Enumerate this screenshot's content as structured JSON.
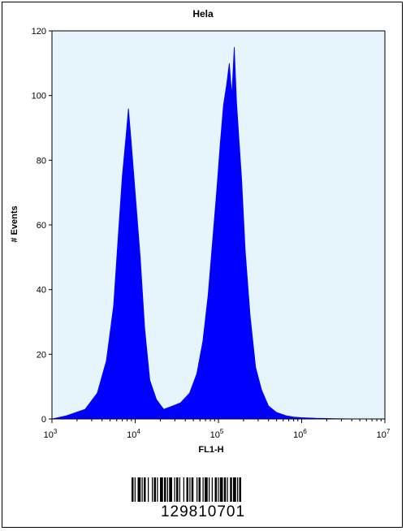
{
  "chart_data": {
    "type": "area",
    "title": "Hela",
    "xlabel": "FL1-H",
    "ylabel": "# Events",
    "x_scale": "log",
    "xlim": [
      1000,
      10000000
    ],
    "ylim": [
      0,
      120
    ],
    "x_ticks": [
      {
        "base": "10",
        "exp": "3"
      },
      {
        "base": "10",
        "exp": "4"
      },
      {
        "base": "10",
        "exp": "5"
      },
      {
        "base": "10",
        "exp": "6"
      },
      {
        "base": "10",
        "exp": "7"
      }
    ],
    "y_ticks": [
      "0",
      "20",
      "40",
      "60",
      "80",
      "100",
      "120"
    ],
    "fill_color": "#0000ff",
    "background_color": "#e6f4fb",
    "grid": false,
    "series": [
      {
        "values_x": [
          1000,
          1500,
          2500,
          3500,
          4500,
          5500,
          6200,
          7000,
          7800,
          8300,
          9000,
          10000,
          11500,
          13000,
          15000,
          18000,
          22000,
          28000,
          35000,
          45000,
          55000,
          65000,
          75000,
          85000,
          95000,
          105000,
          115000,
          125000,
          135000,
          145000,
          155000,
          165000,
          175000,
          190000,
          210000,
          240000,
          280000,
          330000,
          400000,
          500000,
          650000,
          800000,
          1000000,
          1500000,
          2500000,
          5000000
        ],
        "values_y": [
          0,
          1,
          3,
          8,
          18,
          35,
          55,
          75,
          88,
          96,
          85,
          70,
          50,
          28,
          12,
          6,
          3,
          4,
          5,
          8,
          14,
          24,
          38,
          55,
          70,
          85,
          97,
          103,
          110,
          100,
          115,
          98,
          88,
          74,
          52,
          32,
          16,
          9,
          4,
          2,
          1,
          0.6,
          0.4,
          0.2,
          0.1,
          0
        ]
      }
    ]
  },
  "barcode": {
    "number": "129810701"
  }
}
